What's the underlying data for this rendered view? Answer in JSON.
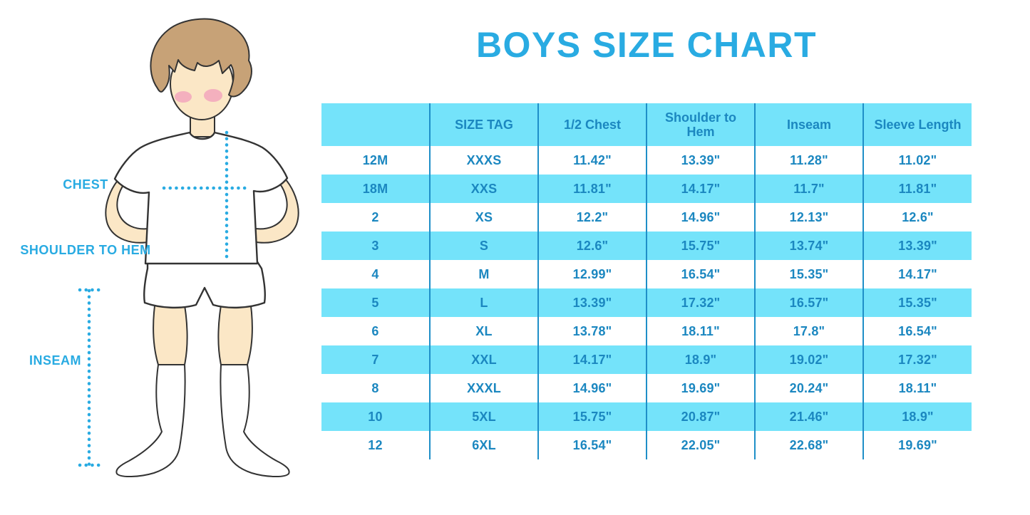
{
  "title": "BOYS SIZE CHART",
  "figure_labels": {
    "chest": "CHEST",
    "shoulder_to_hem": "SHOULDER TO HEM",
    "inseam": "INSEAM"
  },
  "colors": {
    "accent": "#29ABE2",
    "band": "#74E3FA",
    "grid": "#1F8FC8",
    "tabletext": "#1B87C0",
    "skin": "#FBE7C6",
    "hair": "#C7A277",
    "blush": "#F2A6BC",
    "outline": "#333333"
  },
  "chart_data": {
    "type": "table",
    "title": "BOYS SIZE CHART",
    "columns": [
      "",
      "SIZE TAG",
      "1/2 Chest",
      "Shoulder to Hem",
      "Inseam",
      "Sleeve Length"
    ],
    "rows": [
      [
        "12M",
        "XXXS",
        "11.42\"",
        "13.39\"",
        "11.28\"",
        "11.02\""
      ],
      [
        "18M",
        "XXS",
        "11.81\"",
        "14.17\"",
        "11.7\"",
        "11.81\""
      ],
      [
        "2",
        "XS",
        "12.2\"",
        "14.96\"",
        "12.13\"",
        "12.6\""
      ],
      [
        "3",
        "S",
        "12.6\"",
        "15.75\"",
        "13.74\"",
        "13.39\""
      ],
      [
        "4",
        "M",
        "12.99\"",
        "16.54\"",
        "15.35\"",
        "14.17\""
      ],
      [
        "5",
        "L",
        "13.39\"",
        "17.32\"",
        "16.57\"",
        "15.35\""
      ],
      [
        "6",
        "XL",
        "13.78\"",
        "18.11\"",
        "17.8\"",
        "16.54\""
      ],
      [
        "7",
        "XXL",
        "14.17\"",
        "18.9\"",
        "19.02\"",
        "17.32\""
      ],
      [
        "8",
        "XXXL",
        "14.96\"",
        "19.69\"",
        "20.24\"",
        "18.11\""
      ],
      [
        "10",
        "5XL",
        "15.75\"",
        "20.87\"",
        "21.46\"",
        "18.9\""
      ],
      [
        "12",
        "6XL",
        "16.54\"",
        "22.05\"",
        "22.68\"",
        "19.69\""
      ]
    ],
    "zebra": "header and alternating rows (18M, 3, 5, 7, 10) have light-cyan background; others white",
    "legend_position": "none",
    "grid": "vertical column separators only"
  }
}
